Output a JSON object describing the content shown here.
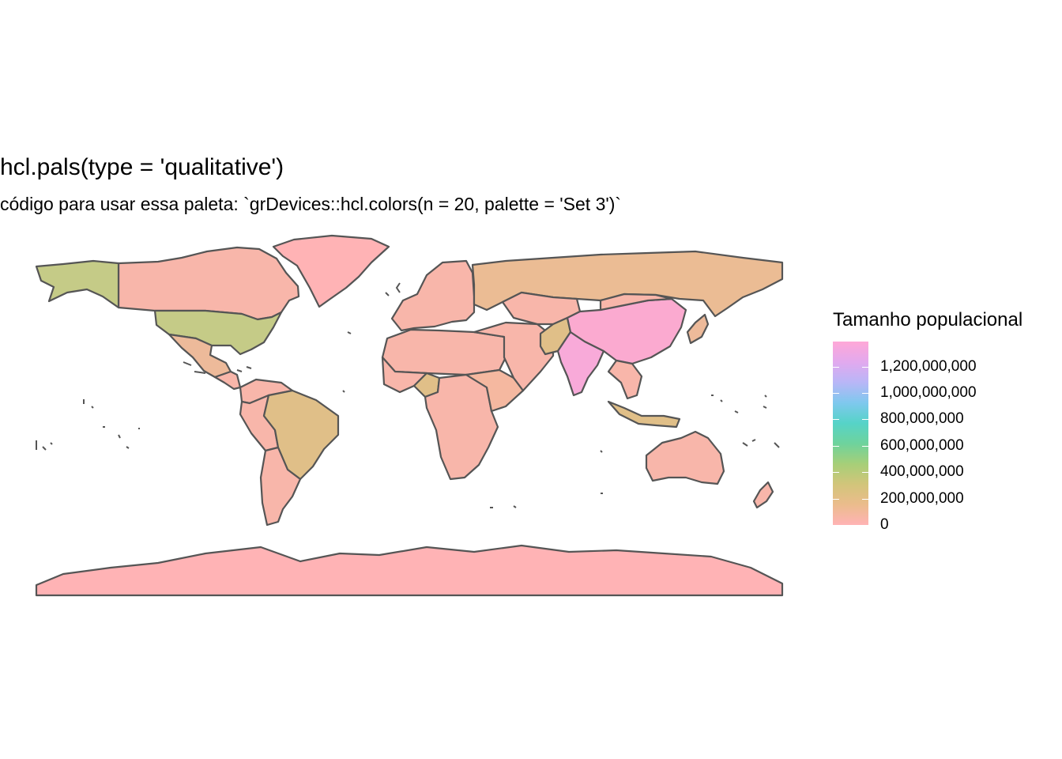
{
  "title": "hcl.pals(type = 'qualitative')",
  "subtitle": "código para usar essa paleta: `grDevices::hcl.colors(n = 20, palette = 'Set 3')`",
  "legend": {
    "title": "Tamanho populacional",
    "breaks": [
      {
        "value": 0,
        "label": "0"
      },
      {
        "value": 200000000,
        "label": "200,000,000"
      },
      {
        "value": 400000000,
        "label": "400,000,000"
      },
      {
        "value": 600000000,
        "label": "600,000,000"
      },
      {
        "value": 800000000,
        "label": "800,000,000"
      },
      {
        "value": 1000000000,
        "label": "1,000,000,000"
      },
      {
        "value": 1200000000,
        "label": "1,200,000,000"
      }
    ],
    "max_value": 1390000000,
    "colors": [
      "#FFB3B5",
      "#EBBC8C",
      "#D2C57A",
      "#A6CF78",
      "#6ED39D",
      "#56D3C8",
      "#7FC8EE",
      "#B9B6F7",
      "#E2A9EE",
      "#FFA8D7"
    ]
  },
  "map": {
    "border_color": "#555555",
    "regions": [
      {
        "name": "Canada",
        "color": "#F8B6AA"
      },
      {
        "name": "Alaska",
        "color": "#C5CB87"
      },
      {
        "name": "Greenland",
        "color": "#FFB3B5"
      },
      {
        "name": "United States",
        "color": "#C5CB87"
      },
      {
        "name": "Mexico",
        "color": "#EDBA9A"
      },
      {
        "name": "Central America",
        "color": "#F8B6AA"
      },
      {
        "name": "Colombia / Venezuela",
        "color": "#F8B6AA"
      },
      {
        "name": "Peru / Bolivia",
        "color": "#F8B6AA"
      },
      {
        "name": "Brazil",
        "color": "#E0BF88"
      },
      {
        "name": "Argentina / Chile",
        "color": "#F8B6AA"
      },
      {
        "name": "Europe",
        "color": "#F8B6AA"
      },
      {
        "name": "Russia",
        "color": "#EBBC94"
      },
      {
        "name": "North Africa",
        "color": "#F8B6AA"
      },
      {
        "name": "West Africa",
        "color": "#F8B6AA"
      },
      {
        "name": "Nigeria",
        "color": "#E0BF88"
      },
      {
        "name": "Central & Southern Africa",
        "color": "#F8B6AA"
      },
      {
        "name": "East Africa",
        "color": "#F5B8A0"
      },
      {
        "name": "Middle East",
        "color": "#F8B6AA"
      },
      {
        "name": "Central Asia",
        "color": "#F8B6AA"
      },
      {
        "name": "Pakistan",
        "color": "#E0BF88"
      },
      {
        "name": "India",
        "color": "#F8AAD9"
      },
      {
        "name": "China",
        "color": "#FBAAD0"
      },
      {
        "name": "Mongolia",
        "color": "#F8B6AA"
      },
      {
        "name": "Southeast Asia",
        "color": "#F8B6AA"
      },
      {
        "name": "Japan",
        "color": "#EDBA9A"
      },
      {
        "name": "Indonesia",
        "color": "#E0BF88"
      },
      {
        "name": "Australia",
        "color": "#F8B6AA"
      },
      {
        "name": "New Zealand",
        "color": "#F8B6AA"
      },
      {
        "name": "Antarctica",
        "color": "#FFB3B5"
      }
    ]
  }
}
